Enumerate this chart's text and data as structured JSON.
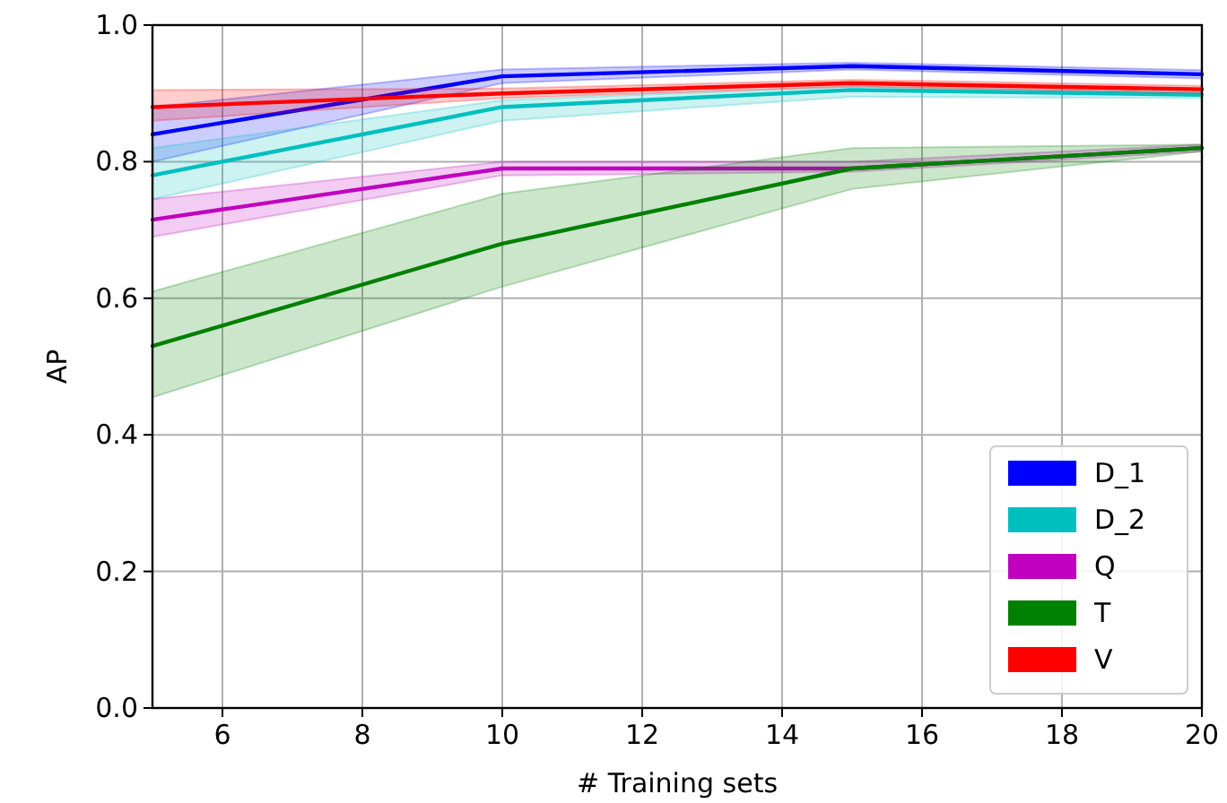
{
  "chart_data": {
    "type": "line",
    "xlabel": "# Training sets",
    "ylabel": "AP",
    "x": [
      5,
      10,
      15,
      20
    ],
    "xlim": [
      5,
      20
    ],
    "xticks": [
      6,
      8,
      10,
      12,
      14,
      16,
      18,
      20
    ],
    "ylim": [
      0,
      1
    ],
    "yticks": [
      {
        "value": 0,
        "label": "0.0"
      },
      0.2,
      0.4,
      0.6,
      0.8,
      {
        "value": 1,
        "label": "1.0"
      }
    ],
    "grid": true,
    "legend": "bottom right",
    "series": [
      {
        "name": "D_1",
        "color": "#0000ff",
        "values": [
          0.84,
          0.925,
          0.94,
          0.928
        ],
        "lower": [
          0.8,
          0.915,
          0.935,
          0.922
        ],
        "upper": [
          0.88,
          0.935,
          0.945,
          0.934
        ]
      },
      {
        "name": "D_2",
        "color": "#00bfbf",
        "values": [
          0.78,
          0.88,
          0.905,
          0.898
        ],
        "lower": [
          0.745,
          0.86,
          0.895,
          0.893
        ],
        "upper": [
          0.82,
          0.89,
          0.91,
          0.903
        ]
      },
      {
        "name": "Q",
        "color": "#bf00bf",
        "values": [
          0.715,
          0.79,
          0.79,
          0.82
        ],
        "lower": [
          0.69,
          0.78,
          0.785,
          0.815
        ],
        "upper": [
          0.745,
          0.8,
          0.8,
          0.825
        ]
      },
      {
        "name": "T",
        "color": "#008000",
        "values": [
          0.53,
          0.68,
          0.79,
          0.82
        ],
        "lower": [
          0.455,
          0.617,
          0.76,
          0.815
        ],
        "upper": [
          0.61,
          0.753,
          0.82,
          0.825
        ]
      },
      {
        "name": "V",
        "color": "#ff0000",
        "values": [
          0.88,
          0.9,
          0.915,
          0.906
        ],
        "lower": [
          0.86,
          0.893,
          0.91,
          0.901
        ],
        "upper": [
          0.905,
          0.907,
          0.92,
          0.911
        ]
      }
    ]
  }
}
